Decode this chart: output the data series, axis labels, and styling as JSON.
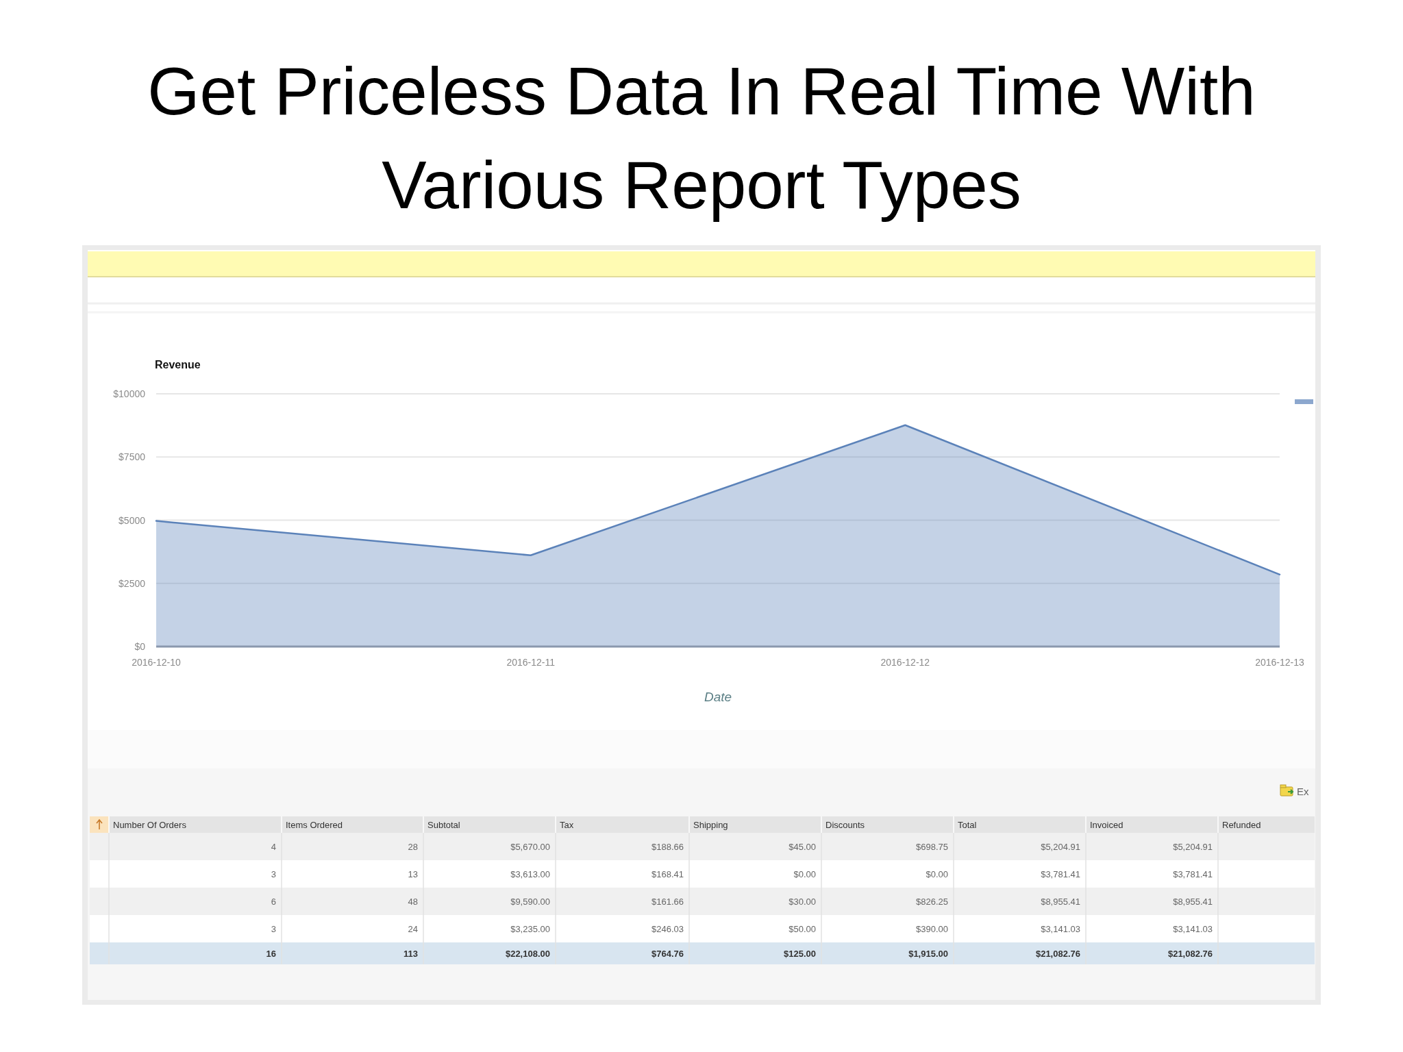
{
  "chart_data": [
    {
      "type": "area",
      "title": "Get Priceless Data In Real Time With Various Report Types",
      "subtitle": "Revenue",
      "xlabel": "Date",
      "x": [
        "2016-12-10",
        "2016-12-11",
        "2016-12-12",
        "2016-12-13"
      ],
      "series": [
        {
          "color": "#5b82b9",
          "values": [
            4970,
            3610,
            8760,
            2850
          ]
        }
      ],
      "xlim": [
        "2016-12-10",
        "2016-12-13"
      ],
      "xticks": [
        "2016-12-10",
        "2016-12-11",
        "2016-12-12",
        "2016-12-13"
      ],
      "ylim": [
        0,
        10000
      ],
      "yticks": [
        {
          "value": 0,
          "label": "$0"
        },
        {
          "value": 2500,
          "label": "$2500"
        },
        {
          "value": 5000,
          "label": "$5000"
        },
        {
          "value": 7500,
          "label": "$7500"
        },
        {
          "value": 10000,
          "label": "$10000"
        }
      ],
      "grid": "y"
    },
    {
      "type": "other",
      "categories": [
        "Number Of Orders",
        "Items Ordered",
        "Subtotal",
        "Tax",
        "Shipping",
        "Discounts",
        "Total",
        "Invoiced",
        "Refunded"
      ],
      "cells": [
        [
          "4",
          "28",
          "$5,670.00",
          "$188.66",
          "$45.00",
          "$698.75",
          "$5,204.91",
          "$5,204.91",
          null
        ],
        [
          "3",
          "13",
          "$3,613.00",
          "$168.41",
          "$0.00",
          "$0.00",
          "$3,781.41",
          "$3,781.41",
          null
        ],
        [
          "6",
          "48",
          "$9,590.00",
          "$161.66",
          "$30.00",
          "$826.25",
          "$8,955.41",
          "$8,955.41",
          null
        ],
        [
          "3",
          "24",
          "$3,235.00",
          "$246.03",
          "$50.00",
          "$390.00",
          "$3,141.03",
          "$3,141.03",
          null
        ],
        [
          "16",
          "113",
          "$22,108.00",
          "$764.76",
          "$125.00",
          "$1,915.00",
          "$21,082.76",
          "$21,082.76",
          null
        ]
      ],
      "annotations": [
        "Ex"
      ]
    }
  ]
}
